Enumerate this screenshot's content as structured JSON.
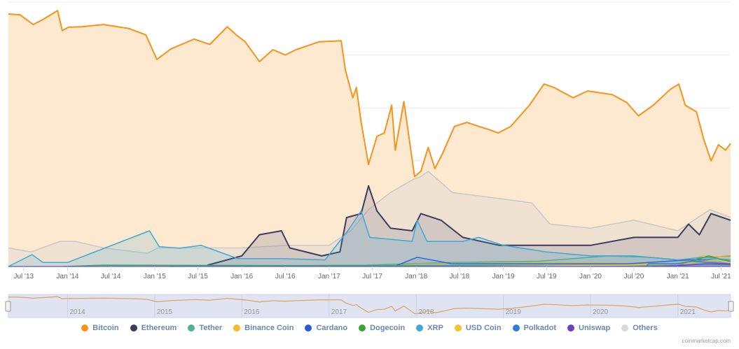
{
  "chart_data": {
    "type": "area",
    "title": "",
    "xlabel": "",
    "ylabel": "",
    "ylim": [
      0,
      100
    ],
    "xlim": [
      "2013-04-28",
      "2021-08-10"
    ],
    "grid": true,
    "legend_placement": "bottom",
    "x_tick_labels": [
      {
        "date": "2013-07-01",
        "label": "Jul '13"
      },
      {
        "date": "2014-01-01",
        "label": "Jan '14"
      },
      {
        "date": "2014-07-01",
        "label": "Jul '14"
      },
      {
        "date": "2015-01-01",
        "label": "Jan '15"
      },
      {
        "date": "2015-07-01",
        "label": "Jul '15"
      },
      {
        "date": "2016-01-01",
        "label": "Jan '16"
      },
      {
        "date": "2016-07-01",
        "label": "Jul '16"
      },
      {
        "date": "2017-01-01",
        "label": "Jan '17"
      },
      {
        "date": "2017-07-01",
        "label": "Jul '17"
      },
      {
        "date": "2018-01-01",
        "label": "Jan '18"
      },
      {
        "date": "2018-07-01",
        "label": "Jul '18"
      },
      {
        "date": "2019-01-01",
        "label": "Jan '19"
      },
      {
        "date": "2019-07-01",
        "label": "Jul '19"
      },
      {
        "date": "2020-01-01",
        "label": "Jan '20"
      },
      {
        "date": "2020-07-01",
        "label": "Jul '20"
      },
      {
        "date": "2021-01-01",
        "label": "Jan '21"
      },
      {
        "date": "2021-07-01",
        "label": "Jul '21"
      }
    ],
    "navigator_labels": [
      {
        "date": "2014-01-01",
        "label": "2014"
      },
      {
        "date": "2015-01-01",
        "label": "2015"
      },
      {
        "date": "2016-01-01",
        "label": "2016"
      },
      {
        "date": "2017-01-01",
        "label": "2017"
      },
      {
        "date": "2018-01-01",
        "label": "2018"
      },
      {
        "date": "2019-01-01",
        "label": "2019"
      },
      {
        "date": "2020-01-01",
        "label": "2020"
      },
      {
        "date": "2021-01-01",
        "label": "2021"
      }
    ],
    "series": [
      {
        "name": "Bitcoin",
        "color": "#f7931a",
        "fill": "#fde9cf",
        "points": [
          [
            "2013-04-28",
            95.5
          ],
          [
            "2013-06-15",
            95.2
          ],
          [
            "2013-08-10",
            91.5
          ],
          [
            "2013-09-20",
            93.4
          ],
          [
            "2013-11-20",
            96.8
          ],
          [
            "2013-12-10",
            89.2
          ],
          [
            "2014-01-05",
            90.5
          ],
          [
            "2014-03-01",
            90.7
          ],
          [
            "2014-06-01",
            91.5
          ],
          [
            "2014-09-15",
            90
          ],
          [
            "2014-11-25",
            87.6
          ],
          [
            "2015-01-10",
            78.3
          ],
          [
            "2015-03-10",
            82.3
          ],
          [
            "2015-06-15",
            86
          ],
          [
            "2015-08-20",
            84
          ],
          [
            "2015-11-01",
            90.7
          ],
          [
            "2015-12-10",
            87.5
          ],
          [
            "2016-01-15",
            85
          ],
          [
            "2016-03-15",
            77.5
          ],
          [
            "2016-05-10",
            82
          ],
          [
            "2016-07-01",
            80
          ],
          [
            "2016-08-15",
            82
          ],
          [
            "2016-11-20",
            85
          ],
          [
            "2017-02-20",
            85.4
          ],
          [
            "2017-03-10",
            74.3
          ],
          [
            "2017-04-10",
            63.8
          ],
          [
            "2017-04-25",
            67.7
          ],
          [
            "2017-05-15",
            54.5
          ],
          [
            "2017-06-15",
            38.6
          ],
          [
            "2017-07-20",
            49.2
          ],
          [
            "2017-08-20",
            50.5
          ],
          [
            "2017-09-20",
            61
          ],
          [
            "2017-10-05",
            44
          ],
          [
            "2017-11-10",
            62.4
          ],
          [
            "2017-12-25",
            34
          ],
          [
            "2018-01-20",
            36
          ],
          [
            "2018-02-20",
            45
          ],
          [
            "2018-03-20",
            37
          ],
          [
            "2018-04-20",
            42.5
          ],
          [
            "2018-06-10",
            53
          ],
          [
            "2018-08-01",
            54.5
          ],
          [
            "2018-09-20",
            53
          ],
          [
            "2018-11-01",
            51.8
          ],
          [
            "2018-12-10",
            50.5
          ],
          [
            "2019-02-01",
            53
          ],
          [
            "2019-04-20",
            61
          ],
          [
            "2019-06-20",
            69
          ],
          [
            "2019-08-01",
            67.7
          ],
          [
            "2019-10-20",
            63.8
          ],
          [
            "2019-12-20",
            66.4
          ],
          [
            "2020-04-01",
            65
          ],
          [
            "2020-06-01",
            62
          ],
          [
            "2020-07-20",
            57
          ],
          [
            "2020-09-20",
            61
          ],
          [
            "2020-12-01",
            67
          ],
          [
            "2021-01-05",
            69
          ],
          [
            "2021-02-01",
            61
          ],
          [
            "2021-03-20",
            58.5
          ],
          [
            "2021-04-20",
            48
          ],
          [
            "2021-05-20",
            40
          ],
          [
            "2021-06-20",
            46
          ],
          [
            "2021-07-20",
            44
          ],
          [
            "2021-08-10",
            46.5
          ]
        ]
      },
      {
        "name": "Others",
        "color": "#c8c8c8",
        "fill": "rgba(215,215,215,0.35)",
        "points": [
          [
            "2013-04-28",
            7
          ],
          [
            "2013-08-01",
            5.5
          ],
          [
            "2013-12-01",
            9.5
          ],
          [
            "2014-02-01",
            9.5
          ],
          [
            "2014-06-01",
            7
          ],
          [
            "2014-12-01",
            5
          ],
          [
            "2015-01-15",
            7
          ],
          [
            "2015-07-01",
            7
          ],
          [
            "2016-01-01",
            7
          ],
          [
            "2016-07-01",
            8
          ],
          [
            "2017-01-01",
            8
          ],
          [
            "2017-04-01",
            13.5
          ],
          [
            "2017-06-15",
            21.5
          ],
          [
            "2017-09-15",
            28
          ],
          [
            "2017-12-20",
            33
          ],
          [
            "2018-01-20",
            34
          ],
          [
            "2018-02-20",
            36
          ],
          [
            "2018-06-01",
            28
          ],
          [
            "2019-01-01",
            25.5
          ],
          [
            "2019-05-01",
            24
          ],
          [
            "2019-07-15",
            16
          ],
          [
            "2020-01-01",
            14.5
          ],
          [
            "2020-07-01",
            17.5
          ],
          [
            "2021-01-01",
            13.5
          ],
          [
            "2021-05-15",
            21.5
          ],
          [
            "2021-08-10",
            18.5
          ]
        ]
      },
      {
        "name": "Ethereum",
        "color": "#3c3c5d",
        "fill": "rgba(150,140,160,0.3)",
        "points": [
          [
            "2015-08-10",
            0.5
          ],
          [
            "2016-01-01",
            4
          ],
          [
            "2016-03-15",
            12
          ],
          [
            "2016-06-15",
            13.5
          ],
          [
            "2016-07-20",
            7
          ],
          [
            "2016-12-01",
            4
          ],
          [
            "2017-02-15",
            5.5
          ],
          [
            "2017-03-15",
            18.5
          ],
          [
            "2017-05-15",
            20
          ],
          [
            "2017-06-15",
            30.5
          ],
          [
            "2017-07-20",
            21
          ],
          [
            "2017-09-15",
            14.5
          ],
          [
            "2017-12-15",
            13.5
          ],
          [
            "2018-01-20",
            20
          ],
          [
            "2018-04-15",
            17.5
          ],
          [
            "2018-07-15",
            11
          ],
          [
            "2018-12-15",
            8
          ],
          [
            "2019-07-01",
            8
          ],
          [
            "2020-01-01",
            8
          ],
          [
            "2020-07-01",
            11
          ],
          [
            "2021-01-01",
            11
          ],
          [
            "2021-02-15",
            16
          ],
          [
            "2021-04-01",
            12
          ],
          [
            "2021-05-20",
            20
          ],
          [
            "2021-08-10",
            17.5
          ]
        ]
      },
      {
        "name": "Tether",
        "color": "#50af95",
        "fill": "rgba(80,175,149,0.15)",
        "points": [
          [
            "2015-03-01",
            0
          ],
          [
            "2017-06-01",
            0.5
          ],
          [
            "2018-06-01",
            1.5
          ],
          [
            "2019-06-01",
            2
          ],
          [
            "2020-03-15",
            4
          ],
          [
            "2020-09-01",
            3.5
          ],
          [
            "2021-01-01",
            2.5
          ],
          [
            "2021-05-20",
            3.5
          ],
          [
            "2021-08-10",
            4
          ]
        ]
      },
      {
        "name": "Binance Coin",
        "color": "#f3ba2f",
        "fill": "rgba(243,186,47,0.1)",
        "points": [
          [
            "2017-08-01",
            0
          ],
          [
            "2018-01-15",
            1
          ],
          [
            "2019-06-01",
            1.5
          ],
          [
            "2021-01-01",
            1
          ],
          [
            "2021-04-15",
            4
          ],
          [
            "2021-08-10",
            3.5
          ]
        ]
      },
      {
        "name": "Cardano",
        "color": "#2a5ada",
        "fill": "rgba(42,90,218,0.1)",
        "points": [
          [
            "2017-10-01",
            0
          ],
          [
            "2018-01-05",
            3.5
          ],
          [
            "2018-06-01",
            1
          ],
          [
            "2020-06-01",
            1
          ],
          [
            "2021-02-15",
            2.5
          ],
          [
            "2021-08-10",
            2.5
          ]
        ]
      },
      {
        "name": "Dogecoin",
        "color": "#3aa33a",
        "fill": "rgba(58,163,58,0.1)",
        "points": [
          [
            "2013-12-15",
            0
          ],
          [
            "2014-06-01",
            0.5
          ],
          [
            "2017-01-01",
            0.3
          ],
          [
            "2021-01-01",
            0.3
          ],
          [
            "2021-05-10",
            4
          ],
          [
            "2021-08-10",
            1.8
          ]
        ]
      },
      {
        "name": "XRP",
        "color": "#3ea8d6",
        "fill": "rgba(62,168,214,0.18)",
        "points": [
          [
            "2013-04-28",
            0
          ],
          [
            "2013-08-05",
            4.5
          ],
          [
            "2013-09-20",
            1.5
          ],
          [
            "2014-01-01",
            1.5
          ],
          [
            "2014-12-10",
            13.5
          ],
          [
            "2015-01-20",
            7.5
          ],
          [
            "2015-04-15",
            6.9
          ],
          [
            "2015-07-15",
            8
          ],
          [
            "2015-12-15",
            3
          ],
          [
            "2016-06-15",
            3
          ],
          [
            "2016-12-15",
            2.5
          ],
          [
            "2017-03-20",
            13.5
          ],
          [
            "2017-05-15",
            21
          ],
          [
            "2017-06-20",
            11
          ],
          [
            "2017-12-15",
            9.5
          ],
          [
            "2018-01-05",
            17.5
          ],
          [
            "2018-02-15",
            9.5
          ],
          [
            "2018-07-15",
            9.5
          ],
          [
            "2018-09-20",
            11
          ],
          [
            "2019-01-01",
            8
          ],
          [
            "2019-07-01",
            5.5
          ],
          [
            "2020-01-01",
            4
          ],
          [
            "2020-07-01",
            4
          ],
          [
            "2021-01-01",
            2.5
          ],
          [
            "2021-04-15",
            3.5
          ],
          [
            "2021-08-10",
            2.5
          ]
        ]
      },
      {
        "name": "USD Coin",
        "color": "#f4c430",
        "fill": "rgba(244,196,48,0.1)",
        "points": [
          [
            "2018-10-01",
            0
          ],
          [
            "2020-06-01",
            0.5
          ],
          [
            "2021-01-01",
            1
          ],
          [
            "2021-06-15",
            2.5
          ],
          [
            "2021-08-10",
            1.5
          ]
        ]
      },
      {
        "name": "Polkadot",
        "color": "#2e7cd6",
        "fill": "rgba(46,124,214,0.1)",
        "points": [
          [
            "2020-08-20",
            0
          ],
          [
            "2020-09-01",
            1
          ],
          [
            "2021-01-01",
            1
          ],
          [
            "2021-03-01",
            2
          ],
          [
            "2021-08-10",
            1
          ]
        ]
      },
      {
        "name": "Uniswap",
        "color": "#6f3fbf",
        "fill": "rgba(111,63,191,0.1)",
        "points": [
          [
            "2020-09-17",
            0
          ],
          [
            "2021-01-01",
            0.3
          ],
          [
            "2021-05-01",
            1
          ],
          [
            "2021-08-10",
            0.8
          ]
        ]
      }
    ]
  },
  "legend": [
    {
      "label": "Bitcoin",
      "color": "#f7931a"
    },
    {
      "label": "Ethereum",
      "color": "#3c3c5d"
    },
    {
      "label": "Tether",
      "color": "#50af95"
    },
    {
      "label": "Binance Coin",
      "color": "#f3ba2f"
    },
    {
      "label": "Cardano",
      "color": "#2a5ada"
    },
    {
      "label": "Dogecoin",
      "color": "#3aa33a"
    },
    {
      "label": "XRP",
      "color": "#3ea8d6"
    },
    {
      "label": "USD Coin",
      "color": "#f4c430"
    },
    {
      "label": "Polkadot",
      "color": "#2e7cd6"
    },
    {
      "label": "Uniswap",
      "color": "#6f3fbf"
    },
    {
      "label": "Others",
      "color": "#d9d9d9"
    }
  ],
  "credit": "coinmarketcap.com"
}
